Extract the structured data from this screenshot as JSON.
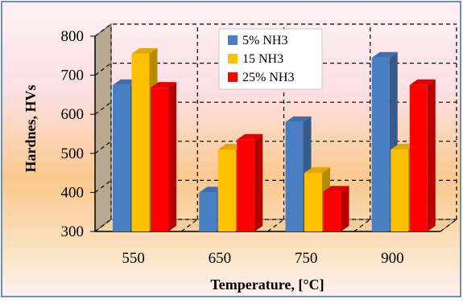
{
  "colors": {
    "series": [
      "#4a7ec3",
      "#ffc000",
      "#ff0000"
    ],
    "frame": "#6b8fc4",
    "bg_top": "#fbe9ef",
    "bg_mid": "#fbc178",
    "wall_side": "#b7a88f",
    "floor": "#e8c890"
  },
  "chart_data": {
    "type": "bar",
    "style": "3d-clustered",
    "categories": [
      "550",
      "650",
      "750",
      "900"
    ],
    "series": [
      {
        "name": "5% NH3",
        "values": [
          675,
          400,
          580,
          745
        ]
      },
      {
        "name": "15 NH3",
        "values": [
          755,
          510,
          450,
          510
        ]
      },
      {
        "name": "25% NH3",
        "values": [
          668,
          535,
          402,
          675
        ]
      }
    ],
    "xlabel": "Temperature, [°C]",
    "ylabel": "Hardnes,  HVs",
    "ylim": [
      300,
      800
    ],
    "yticks": [
      "300",
      "400",
      "500",
      "600",
      "700",
      "800"
    ],
    "grid": "dashed",
    "legend": "top-center"
  }
}
